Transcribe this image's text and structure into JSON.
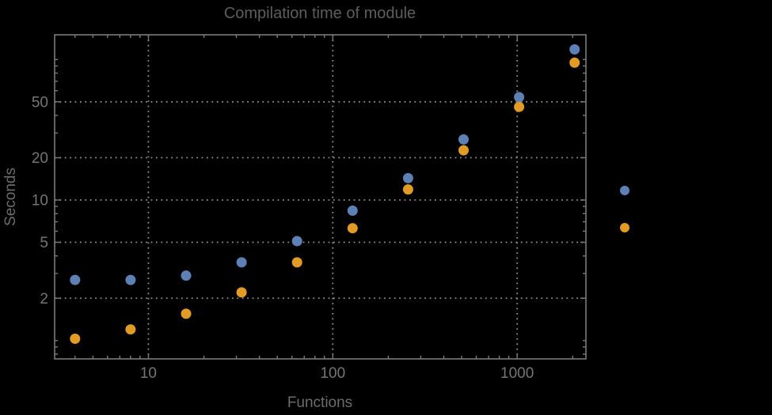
{
  "window": {
    "background": "#000000"
  },
  "chart_data": {
    "type": "scatter",
    "title": "Compilation time of module",
    "xlabel": "Functions",
    "ylabel": "Seconds",
    "xscale": "log",
    "yscale": "log",
    "xlim": [
      3.1,
      2360
    ],
    "ylim": [
      0.74,
      150
    ],
    "x_major_ticks": [
      10,
      100,
      1000
    ],
    "y_major_ticks": [
      2,
      5,
      10,
      20,
      50
    ],
    "grid": {
      "show": true,
      "style": "dotted",
      "at": "major-ticks",
      "color": "#8f8f8f"
    },
    "legend": {
      "position": "outside-right",
      "items": [
        {
          "label": "",
          "marker_color": "#5e81b5"
        },
        {
          "label": "",
          "marker_color": "#e09c24"
        }
      ]
    },
    "series": [
      {
        "name": "blue",
        "color": "#5e81b5",
        "x": [
          4,
          8,
          16,
          32,
          64,
          128,
          256,
          512,
          1024,
          2048
        ],
        "y": [
          2.7,
          2.7,
          2.9,
          3.6,
          5.1,
          8.4,
          14.3,
          27,
          54,
          118
        ]
      },
      {
        "name": "orange",
        "color": "#e09c24",
        "x": [
          4,
          8,
          16,
          32,
          64,
          128,
          256,
          512,
          1024,
          2048
        ],
        "y": [
          1.03,
          1.2,
          1.55,
          2.2,
          3.6,
          6.3,
          11.9,
          22.6,
          46,
          95
        ]
      }
    ]
  }
}
